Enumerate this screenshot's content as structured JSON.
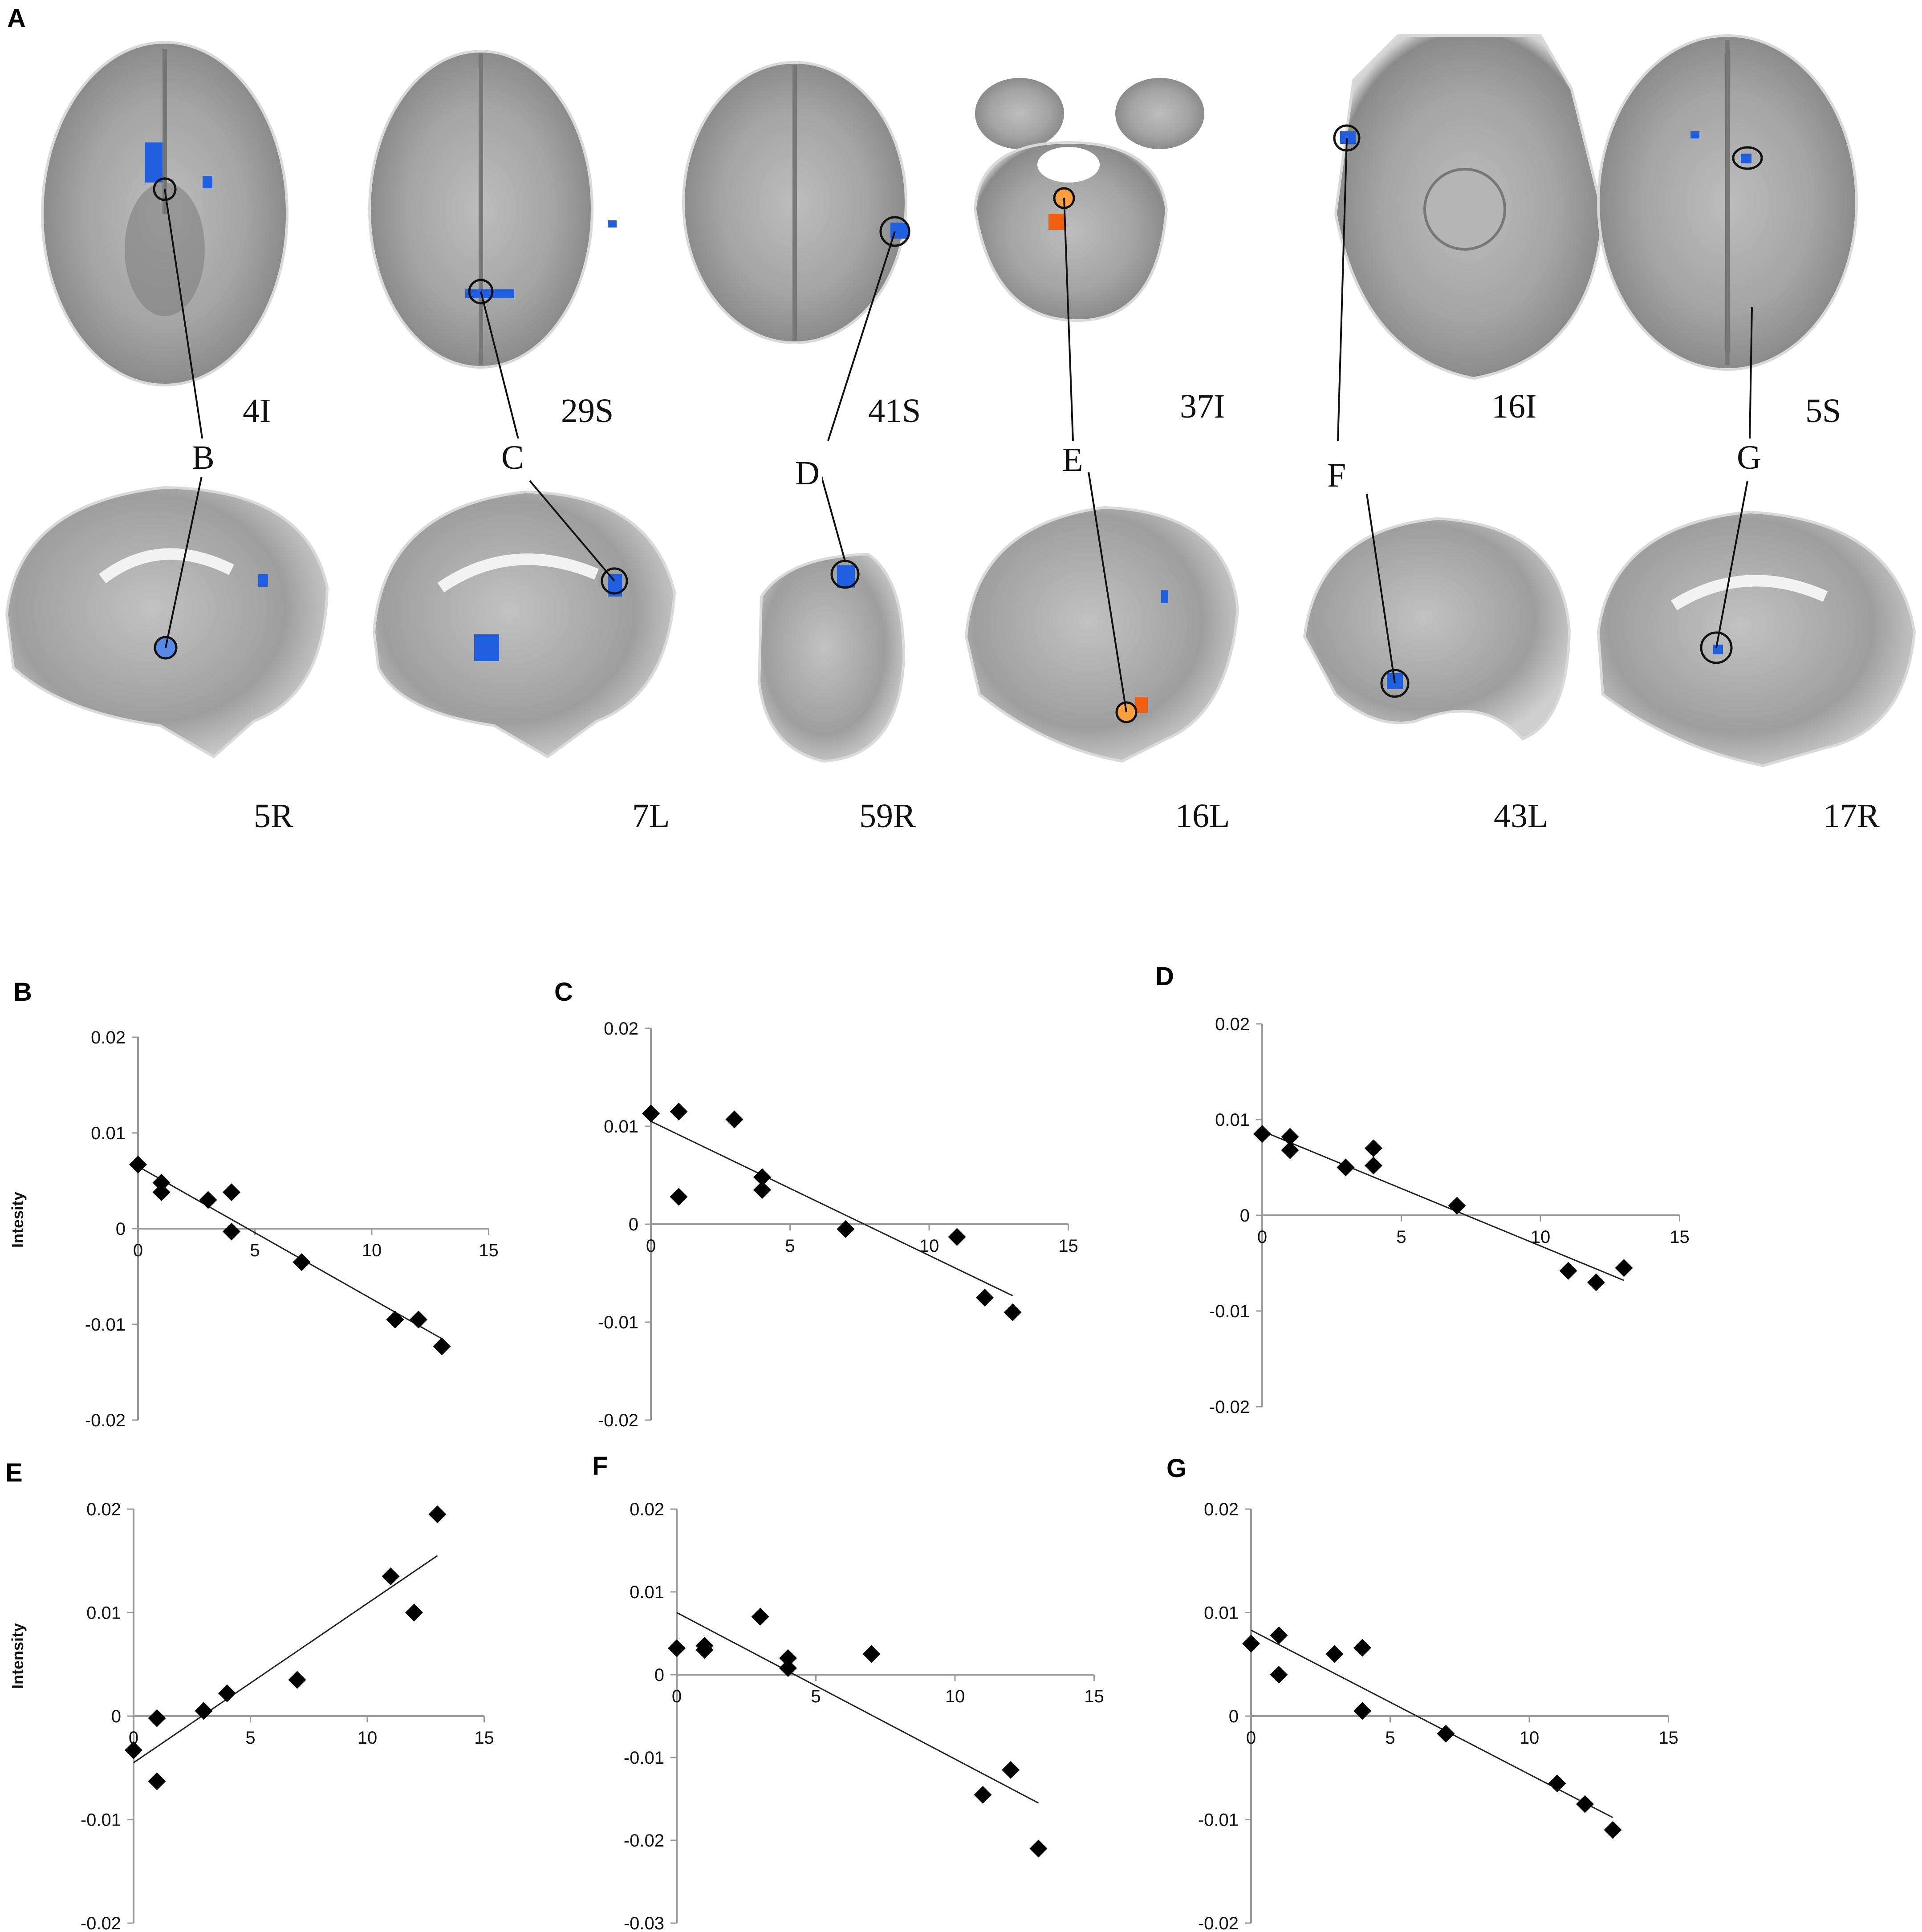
{
  "figure": {
    "panel_a_letter": "A",
    "slice_labels": [
      "4I",
      "29S",
      "41S",
      "37I",
      "16I",
      "5S",
      "5R",
      "7L",
      "59R",
      "16L",
      "43L",
      "17R"
    ],
    "connector_labels": [
      "B",
      "C",
      "D",
      "E",
      "F",
      "G"
    ],
    "colors": {
      "blue_activation": "#1f5fe0",
      "orange_activation": "#f06010",
      "brain_gray": "#9a9a9a"
    }
  },
  "chart_data": [
    {
      "panel": "B",
      "type": "scatter",
      "ylabel": "Intesity",
      "xlim": [
        0,
        15
      ],
      "ylim": [
        -0.02,
        0.02
      ],
      "xticks": [
        "0",
        "5",
        "10",
        "15"
      ],
      "yticks": [
        "0.02",
        "0.01",
        "0",
        "-0.01",
        "-0.02"
      ],
      "points": [
        [
          0,
          0.0067
        ],
        [
          1,
          0.0048
        ],
        [
          1,
          0.0038
        ],
        [
          3,
          0.003
        ],
        [
          4,
          0.0038
        ],
        [
          4,
          -0.0003
        ],
        [
          7,
          -0.0035
        ],
        [
          11,
          -0.0095
        ],
        [
          12,
          -0.0095
        ],
        [
          13,
          -0.0123
        ]
      ],
      "trendline": [
        [
          0,
          0.0065
        ],
        [
          13,
          -0.0115
        ]
      ]
    },
    {
      "panel": "C",
      "type": "scatter",
      "ylabel": "",
      "xlim": [
        0,
        15
      ],
      "ylim": [
        -0.02,
        0.02
      ],
      "xticks": [
        "0",
        "5",
        "10",
        "15"
      ],
      "yticks": [
        "0.02",
        "0.01",
        "0",
        "-0.01",
        "-0.02"
      ],
      "points": [
        [
          0,
          0.0113
        ],
        [
          1,
          0.0115
        ],
        [
          1,
          0.0028
        ],
        [
          3,
          0.0107
        ],
        [
          4,
          0.0048
        ],
        [
          4,
          0.0035
        ],
        [
          7,
          -0.0005
        ],
        [
          11,
          -0.0013
        ],
        [
          12,
          -0.0075
        ],
        [
          13,
          -0.009
        ]
      ],
      "trendline": [
        [
          0,
          0.0105
        ],
        [
          13,
          -0.0073
        ]
      ]
    },
    {
      "panel": "D",
      "type": "scatter",
      "ylabel": "",
      "xlim": [
        0,
        15
      ],
      "ylim": [
        -0.02,
        0.02
      ],
      "xticks": [
        "0",
        "5",
        "10",
        "15"
      ],
      "yticks": [
        "0.02",
        "0.01",
        "0",
        "-0.01",
        "-0.02"
      ],
      "points": [
        [
          0,
          0.0085
        ],
        [
          1,
          0.0082
        ],
        [
          1,
          0.0068
        ],
        [
          3,
          0.005
        ],
        [
          4,
          0.007
        ],
        [
          4,
          0.0052
        ],
        [
          7,
          0.001
        ],
        [
          11,
          -0.0058
        ],
        [
          12,
          -0.007
        ],
        [
          13,
          -0.0055
        ]
      ],
      "trendline": [
        [
          0,
          0.0088
        ],
        [
          13,
          -0.0068
        ]
      ]
    },
    {
      "panel": "E",
      "type": "scatter",
      "ylabel": "Intensity",
      "xlim": [
        0,
        15
      ],
      "ylim": [
        -0.02,
        0.02
      ],
      "xticks": [
        "0",
        "5",
        "10",
        "15"
      ],
      "yticks": [
        "0.02",
        "0.01",
        "0",
        "-0.01",
        "-0.02"
      ],
      "points": [
        [
          0,
          -0.0033
        ],
        [
          1,
          -0.0002
        ],
        [
          1,
          -0.0063
        ],
        [
          3,
          0.0005
        ],
        [
          4,
          0.0022
        ],
        [
          7,
          0.0035
        ],
        [
          11,
          0.0135
        ],
        [
          12,
          0.01
        ],
        [
          13,
          0.0195
        ]
      ],
      "trendline": [
        [
          0,
          -0.0045
        ],
        [
          13,
          0.0155
        ]
      ]
    },
    {
      "panel": "F",
      "type": "scatter",
      "ylabel": "",
      "xlim": [
        0,
        15
      ],
      "ylim": [
        -0.03,
        0.02
      ],
      "xticks": [
        "0",
        "5",
        "10",
        "15"
      ],
      "yticks": [
        "0.02",
        "0.01",
        "0",
        "-0.01",
        "-0.02",
        "-0.03"
      ],
      "points": [
        [
          0,
          0.0032
        ],
        [
          1,
          0.0035
        ],
        [
          1,
          0.003
        ],
        [
          3,
          0.007
        ],
        [
          4,
          0.002
        ],
        [
          4,
          0.0008
        ],
        [
          7,
          0.0025
        ],
        [
          11,
          -0.0145
        ],
        [
          12,
          -0.0115
        ],
        [
          13,
          -0.021
        ]
      ],
      "trendline": [
        [
          0,
          0.0075
        ],
        [
          13,
          -0.0155
        ]
      ]
    },
    {
      "panel": "G",
      "type": "scatter",
      "ylabel": "",
      "xlim": [
        0,
        15
      ],
      "ylim": [
        -0.02,
        0.02
      ],
      "xticks": [
        "0",
        "5",
        "10",
        "15"
      ],
      "yticks": [
        "0.02",
        "0.01",
        "0",
        "-0.01",
        "-0.02"
      ],
      "points": [
        [
          0,
          0.007
        ],
        [
          1,
          0.0078
        ],
        [
          1,
          0.004
        ],
        [
          3,
          0.006
        ],
        [
          4,
          0.0066
        ],
        [
          4,
          0.0005
        ],
        [
          7,
          -0.0017
        ],
        [
          11,
          -0.0065
        ],
        [
          12,
          -0.0085
        ],
        [
          13,
          -0.011
        ]
      ],
      "trendline": [
        [
          0,
          0.0083
        ],
        [
          13,
          -0.0098
        ]
      ]
    }
  ]
}
